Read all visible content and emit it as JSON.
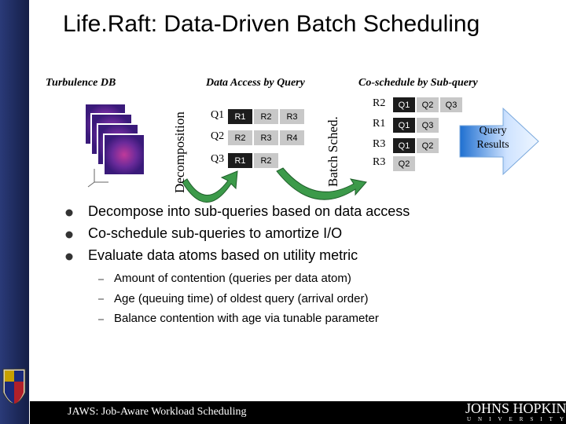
{
  "title": "Life.Raft: Data-Driven Batch Scheduling",
  "diagram": {
    "source_label": "Turbulence DB",
    "decomposition_label": "Decomposition",
    "access": {
      "title": "Data Access by Query",
      "rows": [
        {
          "label": "Q1",
          "cells": [
            {
              "label": "R1",
              "dark": true
            },
            {
              "label": "R2",
              "dark": false
            },
            {
              "label": "R3",
              "dark": false
            }
          ]
        },
        {
          "label": "Q2",
          "cells": [
            {
              "label": "R2",
              "dark": false
            },
            {
              "label": "R3",
              "dark": false
            },
            {
              "label": "R4",
              "dark": false
            }
          ]
        },
        {
          "label": "Q3",
          "cells": [
            {
              "label": "R1",
              "dark": true
            },
            {
              "label": "R2",
              "dark": false
            }
          ]
        }
      ]
    },
    "batch_label": "Batch Sched.",
    "coschedule": {
      "title": "Co-schedule by Sub-query",
      "rows": [
        {
          "label": "R2",
          "cells": [
            {
              "label": "Q1",
              "dark": true
            },
            {
              "label": "Q2",
              "dark": false
            },
            {
              "label": "Q3",
              "dark": false
            }
          ]
        },
        {
          "label": "R1",
          "cells": [
            {
              "label": "Q1",
              "dark": true
            },
            {
              "label": "Q3",
              "dark": false
            }
          ]
        },
        {
          "label": "R3",
          "cells": [
            {
              "label": "Q1",
              "dark": true
            },
            {
              "label": "Q2",
              "dark": false
            }
          ]
        },
        {
          "label": "R3",
          "cells": [
            {
              "label": "Q2",
              "dark": false
            }
          ]
        }
      ]
    },
    "output_label": "Query Results"
  },
  "bullets": [
    "Decompose into sub-queries based on data access",
    "Co-schedule sub-queries to amortize I/O",
    "Evaluate data atoms based on utility metric"
  ],
  "sub_bullets": [
    "Amount of contention (queries per data atom)",
    "Age (queuing time) of oldest query (arrival order)",
    "Balance contention with age via tunable parameter"
  ],
  "footer": {
    "text": "JAWS: Job-Aware Workload Scheduling",
    "logo": "JOHNS HOPKINS",
    "logo_sub": "UNIVERSITY"
  }
}
